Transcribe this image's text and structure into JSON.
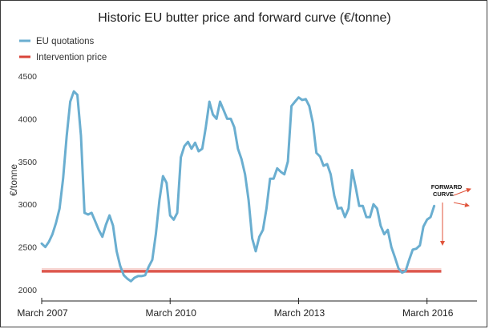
{
  "chart_data": {
    "type": "line",
    "title": "Historic EU butter price and forward curve (€/tonne)",
    "ylabel": "€/tonne",
    "xlabel": "",
    "ylim": [
      2000,
      4500
    ],
    "yticks": [
      2000,
      2500,
      3000,
      3500,
      4000,
      4500
    ],
    "xticks": [
      {
        "label": "March 2007",
        "t": 0
      },
      {
        "label": "March 2010",
        "t": 36
      },
      {
        "label": "March 2013",
        "t": 72
      },
      {
        "label": "March 2016",
        "t": 108
      }
    ],
    "xlim": [
      0,
      122
    ],
    "grid": false,
    "legend_position": "top-left",
    "series": [
      {
        "name": "EU quotations",
        "color": "#6aaed0",
        "points": [
          [
            0,
            2540
          ],
          [
            1,
            2500
          ],
          [
            2,
            2560
          ],
          [
            3,
            2650
          ],
          [
            4,
            2780
          ],
          [
            5,
            2950
          ],
          [
            6,
            3300
          ],
          [
            7,
            3800
          ],
          [
            8,
            4200
          ],
          [
            9,
            4320
          ],
          [
            10,
            4280
          ],
          [
            11,
            3800
          ],
          [
            12,
            2900
          ],
          [
            13,
            2880
          ],
          [
            14,
            2900
          ],
          [
            15,
            2800
          ],
          [
            16,
            2700
          ],
          [
            17,
            2620
          ],
          [
            18,
            2760
          ],
          [
            19,
            2870
          ],
          [
            20,
            2750
          ],
          [
            21,
            2450
          ],
          [
            22,
            2280
          ],
          [
            23,
            2170
          ],
          [
            24,
            2130
          ],
          [
            25,
            2100
          ],
          [
            26,
            2140
          ],
          [
            27,
            2160
          ],
          [
            28,
            2160
          ],
          [
            29,
            2170
          ],
          [
            30,
            2270
          ],
          [
            31,
            2350
          ],
          [
            32,
            2650
          ],
          [
            33,
            3050
          ],
          [
            34,
            3330
          ],
          [
            35,
            3250
          ],
          [
            36,
            2870
          ],
          [
            37,
            2820
          ],
          [
            38,
            2900
          ],
          [
            39,
            3550
          ],
          [
            40,
            3680
          ],
          [
            41,
            3730
          ],
          [
            42,
            3650
          ],
          [
            43,
            3720
          ],
          [
            44,
            3620
          ],
          [
            45,
            3650
          ],
          [
            46,
            3900
          ],
          [
            47,
            4200
          ],
          [
            48,
            4050
          ],
          [
            49,
            4000
          ],
          [
            50,
            4200
          ],
          [
            51,
            4100
          ],
          [
            52,
            4000
          ],
          [
            53,
            4000
          ],
          [
            54,
            3900
          ],
          [
            55,
            3650
          ],
          [
            56,
            3530
          ],
          [
            57,
            3350
          ],
          [
            58,
            3050
          ],
          [
            59,
            2600
          ],
          [
            60,
            2450
          ],
          [
            61,
            2620
          ],
          [
            62,
            2700
          ],
          [
            63,
            2950
          ],
          [
            64,
            3300
          ],
          [
            65,
            3300
          ],
          [
            66,
            3420
          ],
          [
            67,
            3380
          ],
          [
            68,
            3350
          ],
          [
            69,
            3500
          ],
          [
            70,
            4150
          ],
          [
            71,
            4200
          ],
          [
            72,
            4250
          ],
          [
            73,
            4220
          ],
          [
            74,
            4230
          ],
          [
            75,
            4150
          ],
          [
            76,
            3950
          ],
          [
            77,
            3600
          ],
          [
            78,
            3560
          ],
          [
            79,
            3450
          ],
          [
            80,
            3470
          ],
          [
            81,
            3350
          ],
          [
            82,
            3100
          ],
          [
            83,
            2950
          ],
          [
            84,
            2960
          ],
          [
            85,
            2850
          ],
          [
            86,
            2950
          ],
          [
            87,
            3400
          ],
          [
            88,
            3200
          ],
          [
            89,
            2980
          ],
          [
            90,
            2980
          ],
          [
            91,
            2850
          ],
          [
            92,
            2850
          ],
          [
            93,
            3000
          ],
          [
            94,
            2950
          ],
          [
            95,
            2750
          ],
          [
            96,
            2650
          ],
          [
            97,
            2700
          ],
          [
            98,
            2500
          ],
          [
            99,
            2380
          ],
          [
            100,
            2250
          ],
          [
            101,
            2200
          ],
          [
            102,
            2220
          ],
          [
            103,
            2350
          ],
          [
            104,
            2470
          ],
          [
            105,
            2480
          ],
          [
            106,
            2520
          ],
          [
            107,
            2740
          ],
          [
            108,
            2820
          ],
          [
            109,
            2850
          ],
          [
            110,
            2980
          ]
        ]
      },
      {
        "name": "Intervention price",
        "color": "#d9453a",
        "points": [
          [
            0,
            2217
          ],
          [
            112,
            2217
          ]
        ]
      }
    ],
    "annotations": [
      {
        "text_lines": [
          "FORWARD",
          "CURVE"
        ],
        "color": "#e0533a"
      }
    ]
  }
}
